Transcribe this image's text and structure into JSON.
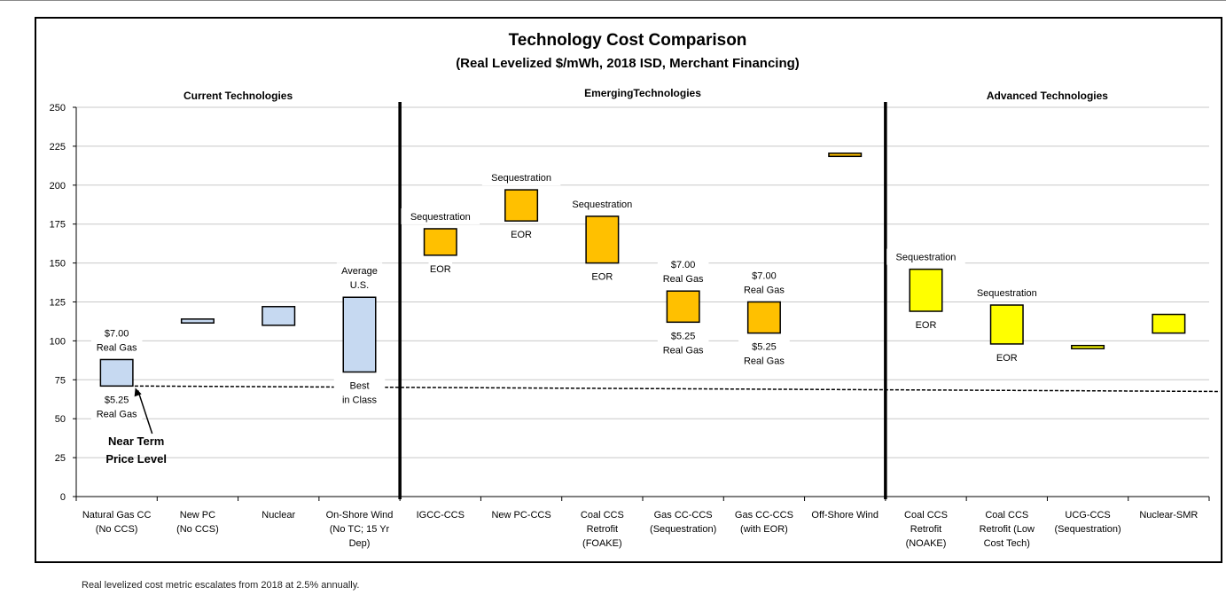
{
  "chart_data": {
    "type": "bar",
    "title": "Technology Cost Comparison",
    "subtitle": "(Real Levelized $/mWh, 2018 ISD, Merchant Financing)",
    "ylim": [
      0,
      250
    ],
    "yticks": [
      0,
      25,
      50,
      75,
      100,
      125,
      150,
      175,
      200,
      225,
      250
    ],
    "grid": true,
    "sections": [
      {
        "label": "Current Technologies",
        "start": 0,
        "end": 3
      },
      {
        "label": "EmergingTechnologies",
        "start": 4,
        "end": 9
      },
      {
        "label": "Advanced Technologies",
        "start": 10,
        "end": 13
      }
    ],
    "categories": [
      [
        "Natural Gas CC",
        "(No CCS)"
      ],
      [
        "New PC",
        "(No CCS)"
      ],
      [
        "Nuclear"
      ],
      [
        "On-Shore Wind",
        "(No TC; 15 Yr",
        "Dep)"
      ],
      [
        "IGCC-CCS"
      ],
      [
        "New PC-CCS"
      ],
      [
        "Coal CCS",
        "Retrofit",
        "(FOAKE)"
      ],
      [
        "Gas CC-CCS",
        "(Sequestration)"
      ],
      [
        "Gas CC-CCS",
        "(with EOR)"
      ],
      [
        "Off-Shore Wind"
      ],
      [
        "Coal CCS",
        "Retrofit",
        "(NOAKE)"
      ],
      [
        "Coal CCS",
        "Retrofit (Low",
        "Cost Tech)"
      ],
      [
        "UCG-CCS",
        "(Sequestration)"
      ],
      [
        "Nuclear-SMR"
      ]
    ],
    "ranges": [
      {
        "low": 71,
        "high": 88,
        "color": "#c6d9f1"
      },
      {
        "low": 111.5,
        "high": 114,
        "color": "#c6d9f1"
      },
      {
        "low": 110,
        "high": 122,
        "color": "#c6d9f1"
      },
      {
        "low": 80,
        "high": 128,
        "color": "#c6d9f1"
      },
      {
        "low": 155,
        "high": 172,
        "color": "#ffc000"
      },
      {
        "low": 177,
        "high": 197,
        "color": "#ffc000"
      },
      {
        "low": 150,
        "high": 180,
        "color": "#ffc000"
      },
      {
        "low": 112,
        "high": 132,
        "color": "#ffc000"
      },
      {
        "low": 105,
        "high": 125,
        "color": "#ffc000"
      },
      {
        "low": 218.5,
        "high": 220.5,
        "color": "#ffc000"
      },
      {
        "low": 119,
        "high": 146,
        "color": "#ffff00"
      },
      {
        "low": 98,
        "high": 123,
        "color": "#ffff00"
      },
      {
        "low": 95,
        "high": 97,
        "color": "#ffff00"
      },
      {
        "low": 105,
        "high": 117,
        "color": "#ffff00"
      }
    ],
    "annotations": [
      {
        "cat": 0,
        "lines": [
          "$7.00",
          "Real Gas"
        ],
        "pos": "above",
        "value": 88
      },
      {
        "cat": 0,
        "lines": [
          "$5.25",
          "Real Gas"
        ],
        "pos": "below",
        "value": 71
      },
      {
        "cat": 3,
        "lines": [
          "Average",
          "U.S."
        ],
        "pos": "above",
        "value": 128
      },
      {
        "cat": 3,
        "lines": [
          "Best",
          "in Class"
        ],
        "pos": "below",
        "value": 80
      },
      {
        "cat": 4,
        "lines": [
          "Sequestration"
        ],
        "pos": "above",
        "value": 172
      },
      {
        "cat": 4,
        "lines": [
          "EOR"
        ],
        "pos": "below",
        "value": 155
      },
      {
        "cat": 5,
        "lines": [
          "Sequestration"
        ],
        "pos": "above",
        "value": 197
      },
      {
        "cat": 5,
        "lines": [
          "EOR"
        ],
        "pos": "below",
        "value": 177
      },
      {
        "cat": 6,
        "lines": [
          "Sequestration"
        ],
        "pos": "above",
        "value": 180
      },
      {
        "cat": 6,
        "lines": [
          "EOR"
        ],
        "pos": "below",
        "value": 150
      },
      {
        "cat": 7,
        "lines": [
          "$7.00",
          "Real Gas"
        ],
        "pos": "above",
        "value": 132
      },
      {
        "cat": 7,
        "lines": [
          "$5.25",
          "Real Gas"
        ],
        "pos": "below",
        "value": 112
      },
      {
        "cat": 8,
        "lines": [
          "$7.00",
          "Real Gas"
        ],
        "pos": "above",
        "value": 125
      },
      {
        "cat": 8,
        "lines": [
          "$5.25",
          "Real Gas"
        ],
        "pos": "below",
        "value": 105
      },
      {
        "cat": 10,
        "lines": [
          "Sequestration"
        ],
        "pos": "above",
        "value": 146
      },
      {
        "cat": 10,
        "lines": [
          "EOR"
        ],
        "pos": "below",
        "value": 119
      },
      {
        "cat": 11,
        "lines": [
          "Sequestration"
        ],
        "pos": "above",
        "value": 123
      },
      {
        "cat": 11,
        "lines": [
          "EOR"
        ],
        "pos": "below",
        "value": 98
      }
    ],
    "price_level_line": {
      "start": 71,
      "end": 67.5
    },
    "price_level_label": [
      "Near Term",
      "Price Level"
    ],
    "footnote": "Real levelized cost metric escalates from 2018 at 2.5% annually."
  }
}
